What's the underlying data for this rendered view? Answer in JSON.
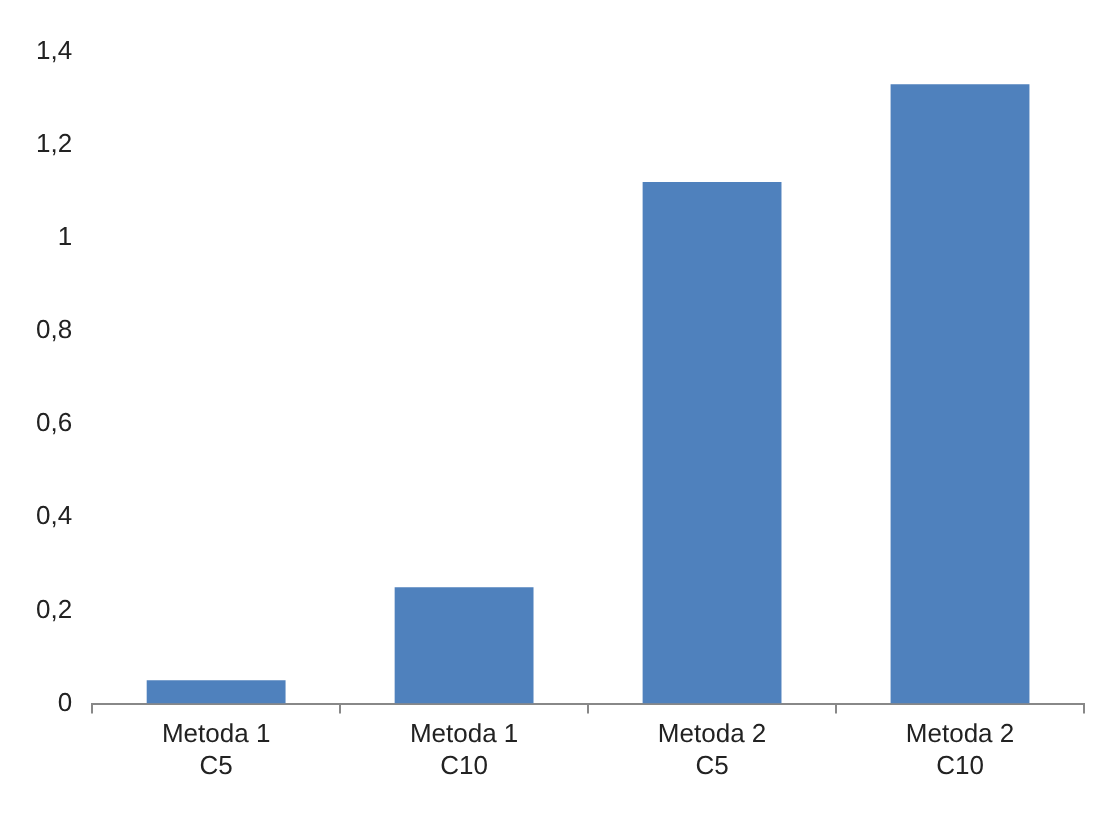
{
  "chart_data": {
    "type": "bar",
    "categories": [
      "Metoda 1 C5",
      "Metoda 1 C10",
      "Metoda 2 C5",
      "Metoda 2 C10"
    ],
    "values": [
      0.05,
      0.25,
      1.12,
      1.33
    ],
    "color": "#4f81bd",
    "ylim": [
      0,
      1.4
    ],
    "yticks": [
      {
        "value": 0,
        "label": "0"
      },
      {
        "value": 0.2,
        "label": "0,2"
      },
      {
        "value": 0.4,
        "label": "0,4"
      },
      {
        "value": 0.6,
        "label": "0,6"
      },
      {
        "value": 0.8,
        "label": "0,8"
      },
      {
        "value": 1,
        "label": "1"
      },
      {
        "value": 1.2,
        "label": "1,2"
      },
      {
        "value": 1.4,
        "label": "1,4"
      }
    ],
    "grid": false,
    "legend": false
  }
}
